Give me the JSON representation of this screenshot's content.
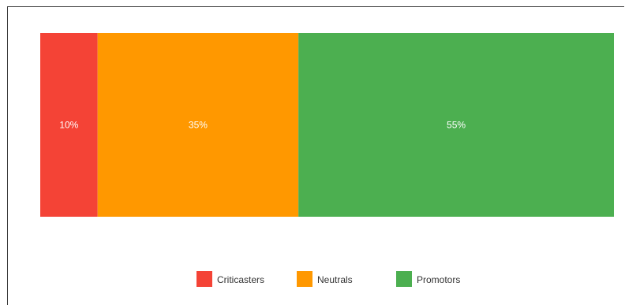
{
  "chart_data": {
    "type": "bar",
    "orientation": "horizontal-stacked-100",
    "categories": [
      ""
    ],
    "series": [
      {
        "name": "Criticasters",
        "values": [
          10
        ],
        "label": "10%",
        "color": "#f44336"
      },
      {
        "name": "Neutrals",
        "values": [
          35
        ],
        "label": "35%",
        "color": "#ff9800"
      },
      {
        "name": "Promotors",
        "values": [
          55
        ],
        "label": "55%",
        "color": "#4caf50"
      }
    ],
    "xlim": [
      0,
      100
    ],
    "unit": "%",
    "grid": false,
    "legend": "bottom-center"
  },
  "legend": {
    "items": [
      {
        "name": "Criticasters",
        "color": "#f44336"
      },
      {
        "name": "Neutrals",
        "color": "#ff9800"
      },
      {
        "name": "Promotors",
        "color": "#4caf50"
      }
    ]
  }
}
